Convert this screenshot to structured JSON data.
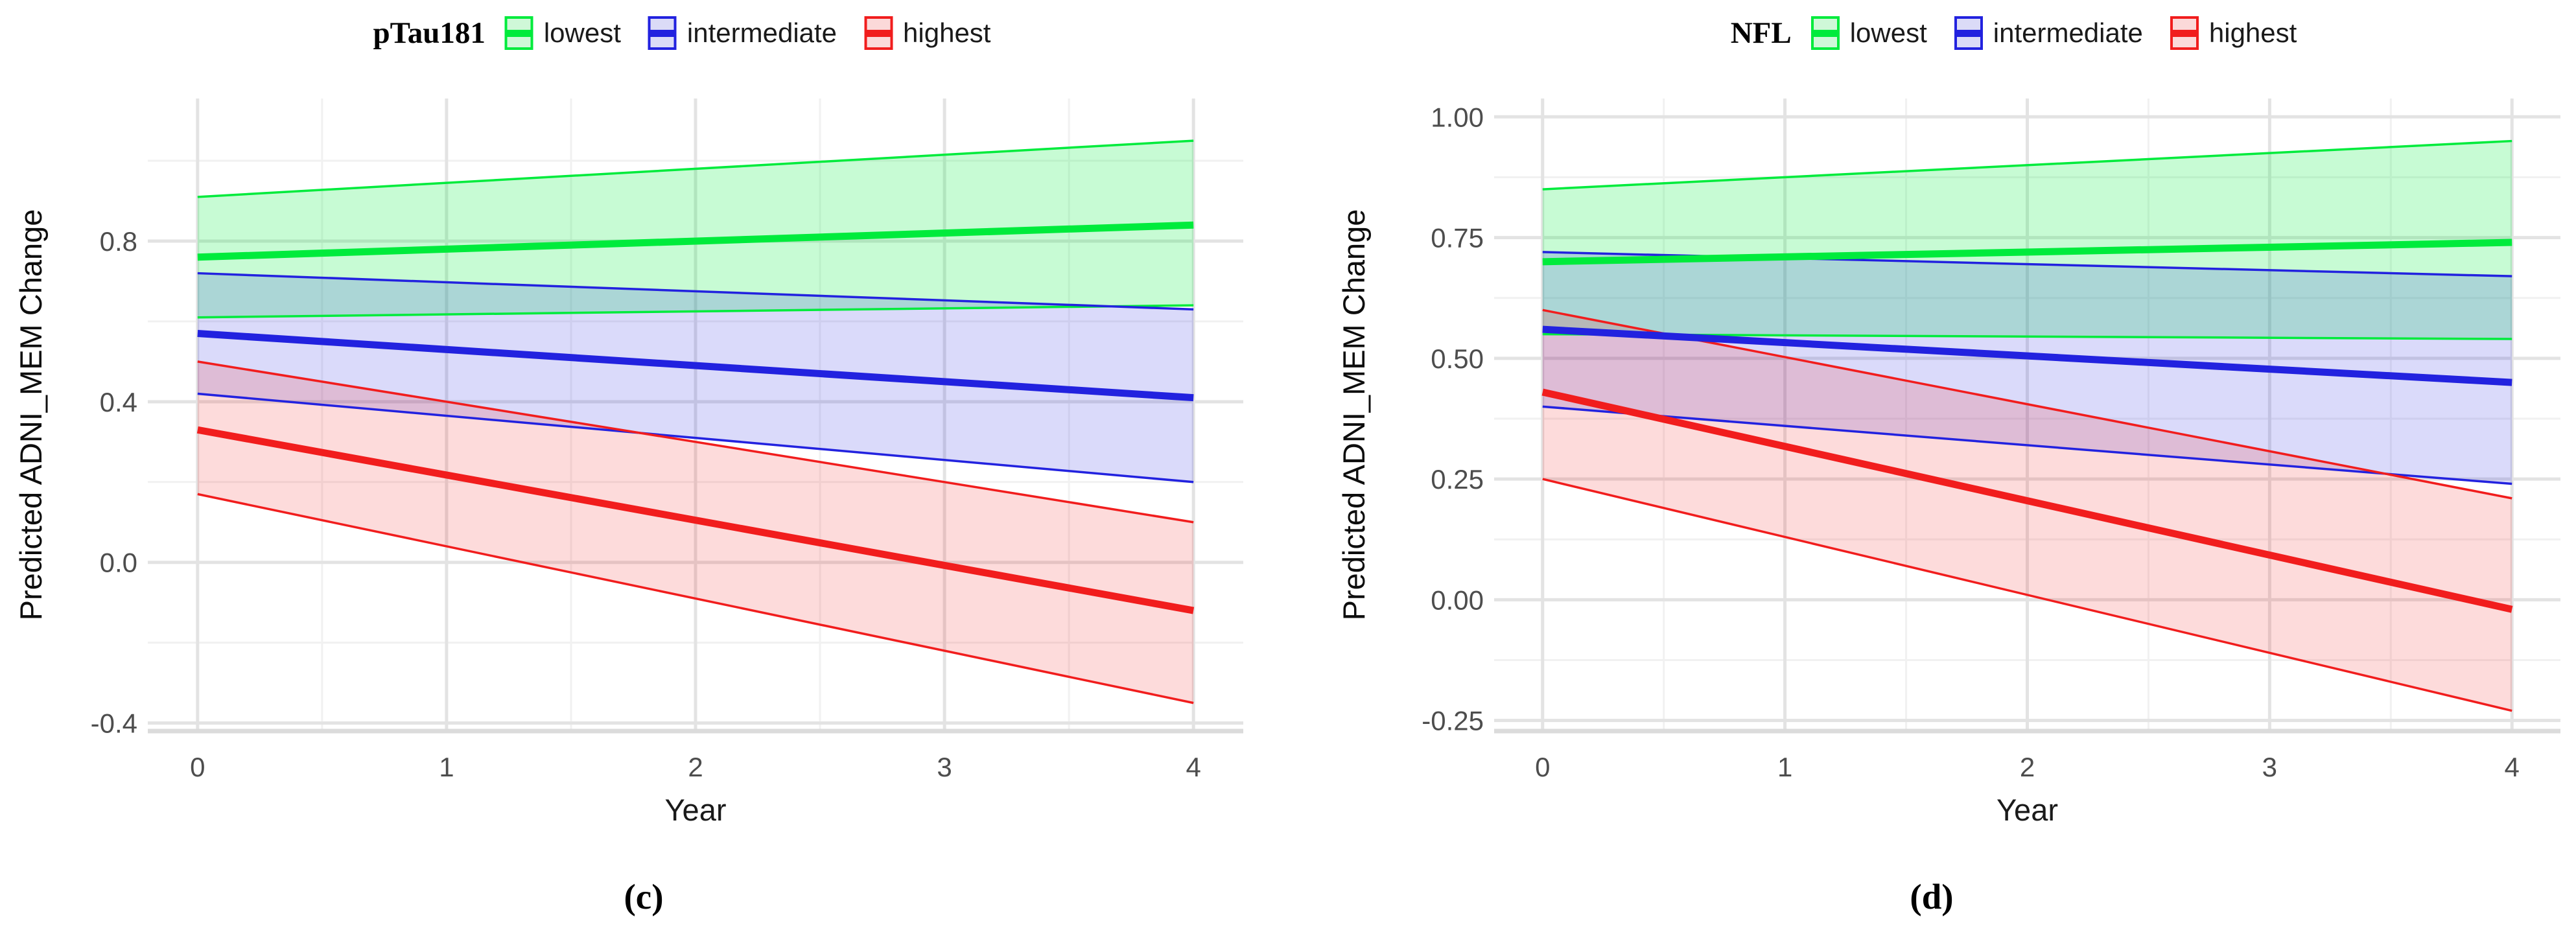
{
  "figure_kind": "two-panel longitudinal model predictions with 95% confidence ribbons",
  "text_colors": {
    "tick_label": "#4D4D4D",
    "axis_title": "#1A1A1A",
    "legend_label": "#1A1A1A"
  },
  "grid_colors": {
    "minor": "#F1F1F1",
    "major": "#E3E3E3",
    "axis_line": "#DBDBDB"
  },
  "chart_data": [
    {
      "type": "line",
      "panel_label": "(c)",
      "legend_title": "pTau181",
      "legend_position": "top-center",
      "xlabel": "Year",
      "ylabel": "Predicted ADNI_MEM Change",
      "x": [
        0,
        4
      ],
      "xticks": [
        0,
        1,
        2,
        3,
        4
      ],
      "xtick_labels": [
        "0",
        "1",
        "2",
        "3",
        "4"
      ],
      "x_minor_gridlines": [
        0.5,
        1.5,
        2.5,
        3.5
      ],
      "xlim": [
        -0.2,
        4.2
      ],
      "ytick_values": [
        -0.4,
        0.0,
        0.4,
        0.8
      ],
      "ytick_labels": [
        "-0.4",
        "0.0",
        "0.4",
        "0.8"
      ],
      "y_minor_gridlines": [
        -0.2,
        0.2,
        0.6,
        1.0
      ],
      "ylim": [
        -0.42,
        1.155
      ],
      "grid": true,
      "series": [
        {
          "name": "lowest",
          "color": "#00EB3C",
          "ribbon_fill": "rgba(0,235,60,0.22)",
          "key_fill": "#CFF8D8",
          "line": {
            "x": [
              0,
              4
            ],
            "y": [
              0.76,
              0.84
            ]
          },
          "ci_upper": [
            0.91,
            1.05
          ],
          "ci_lower": [
            0.61,
            0.64
          ]
        },
        {
          "name": "intermediate",
          "color": "#2222DF",
          "ribbon_fill": "rgba(34,34,223,0.17)",
          "key_fill": "#DBDBF7",
          "line": {
            "x": [
              0,
              4
            ],
            "y": [
              0.57,
              0.41
            ]
          },
          "ci_upper": [
            0.72,
            0.63
          ],
          "ci_lower": [
            0.42,
            0.2
          ]
        },
        {
          "name": "highest",
          "color": "#F11D1D",
          "ribbon_fill": "rgba(241,29,29,0.16)",
          "key_fill": "#FBD9D9",
          "line": {
            "x": [
              0,
              4
            ],
            "y": [
              0.33,
              -0.12
            ]
          },
          "ci_upper": [
            0.5,
            0.1
          ],
          "ci_lower": [
            0.17,
            -0.35
          ]
        }
      ]
    },
    {
      "type": "line",
      "panel_label": "(d)",
      "legend_title": "NFL",
      "legend_position": "top-center",
      "xlabel": "Year",
      "ylabel": "Predicted ADNI_MEM Change",
      "x": [
        0,
        4
      ],
      "xticks": [
        0,
        1,
        2,
        3,
        4
      ],
      "xtick_labels": [
        "0",
        "1",
        "2",
        "3",
        "4"
      ],
      "x_minor_gridlines": [
        0.5,
        1.5,
        2.5,
        3.5
      ],
      "xlim": [
        -0.2,
        4.2
      ],
      "ytick_values": [
        -0.25,
        0.0,
        0.25,
        0.5,
        0.75,
        1.0
      ],
      "ytick_labels": [
        "-0.25",
        "0.00",
        "0.25",
        "0.50",
        "0.75",
        "1.00"
      ],
      "y_minor_gridlines": [
        -0.125,
        0.125,
        0.375,
        0.625,
        0.875
      ],
      "ylim": [
        -0.272,
        1.038
      ],
      "grid": true,
      "series": [
        {
          "name": "lowest",
          "color": "#00EB3C",
          "ribbon_fill": "rgba(0,235,60,0.22)",
          "key_fill": "#CFF8D8",
          "line": {
            "x": [
              0,
              4
            ],
            "y": [
              0.7,
              0.74
            ]
          },
          "ci_upper": [
            0.85,
            0.95
          ],
          "ci_lower": [
            0.55,
            0.54
          ]
        },
        {
          "name": "intermediate",
          "color": "#2222DF",
          "ribbon_fill": "rgba(34,34,223,0.17)",
          "key_fill": "#DBDBF7",
          "line": {
            "x": [
              0,
              4
            ],
            "y": [
              0.56,
              0.45
            ]
          },
          "ci_upper": [
            0.72,
            0.67
          ],
          "ci_lower": [
            0.4,
            0.24
          ]
        },
        {
          "name": "highest",
          "color": "#F11D1D",
          "ribbon_fill": "rgba(241,29,29,0.16)",
          "key_fill": "#FBD9D9",
          "line": {
            "x": [
              0,
              4
            ],
            "y": [
              0.43,
              -0.02
            ]
          },
          "ci_upper": [
            0.6,
            0.21
          ],
          "ci_lower": [
            0.25,
            -0.23
          ]
        }
      ]
    }
  ]
}
